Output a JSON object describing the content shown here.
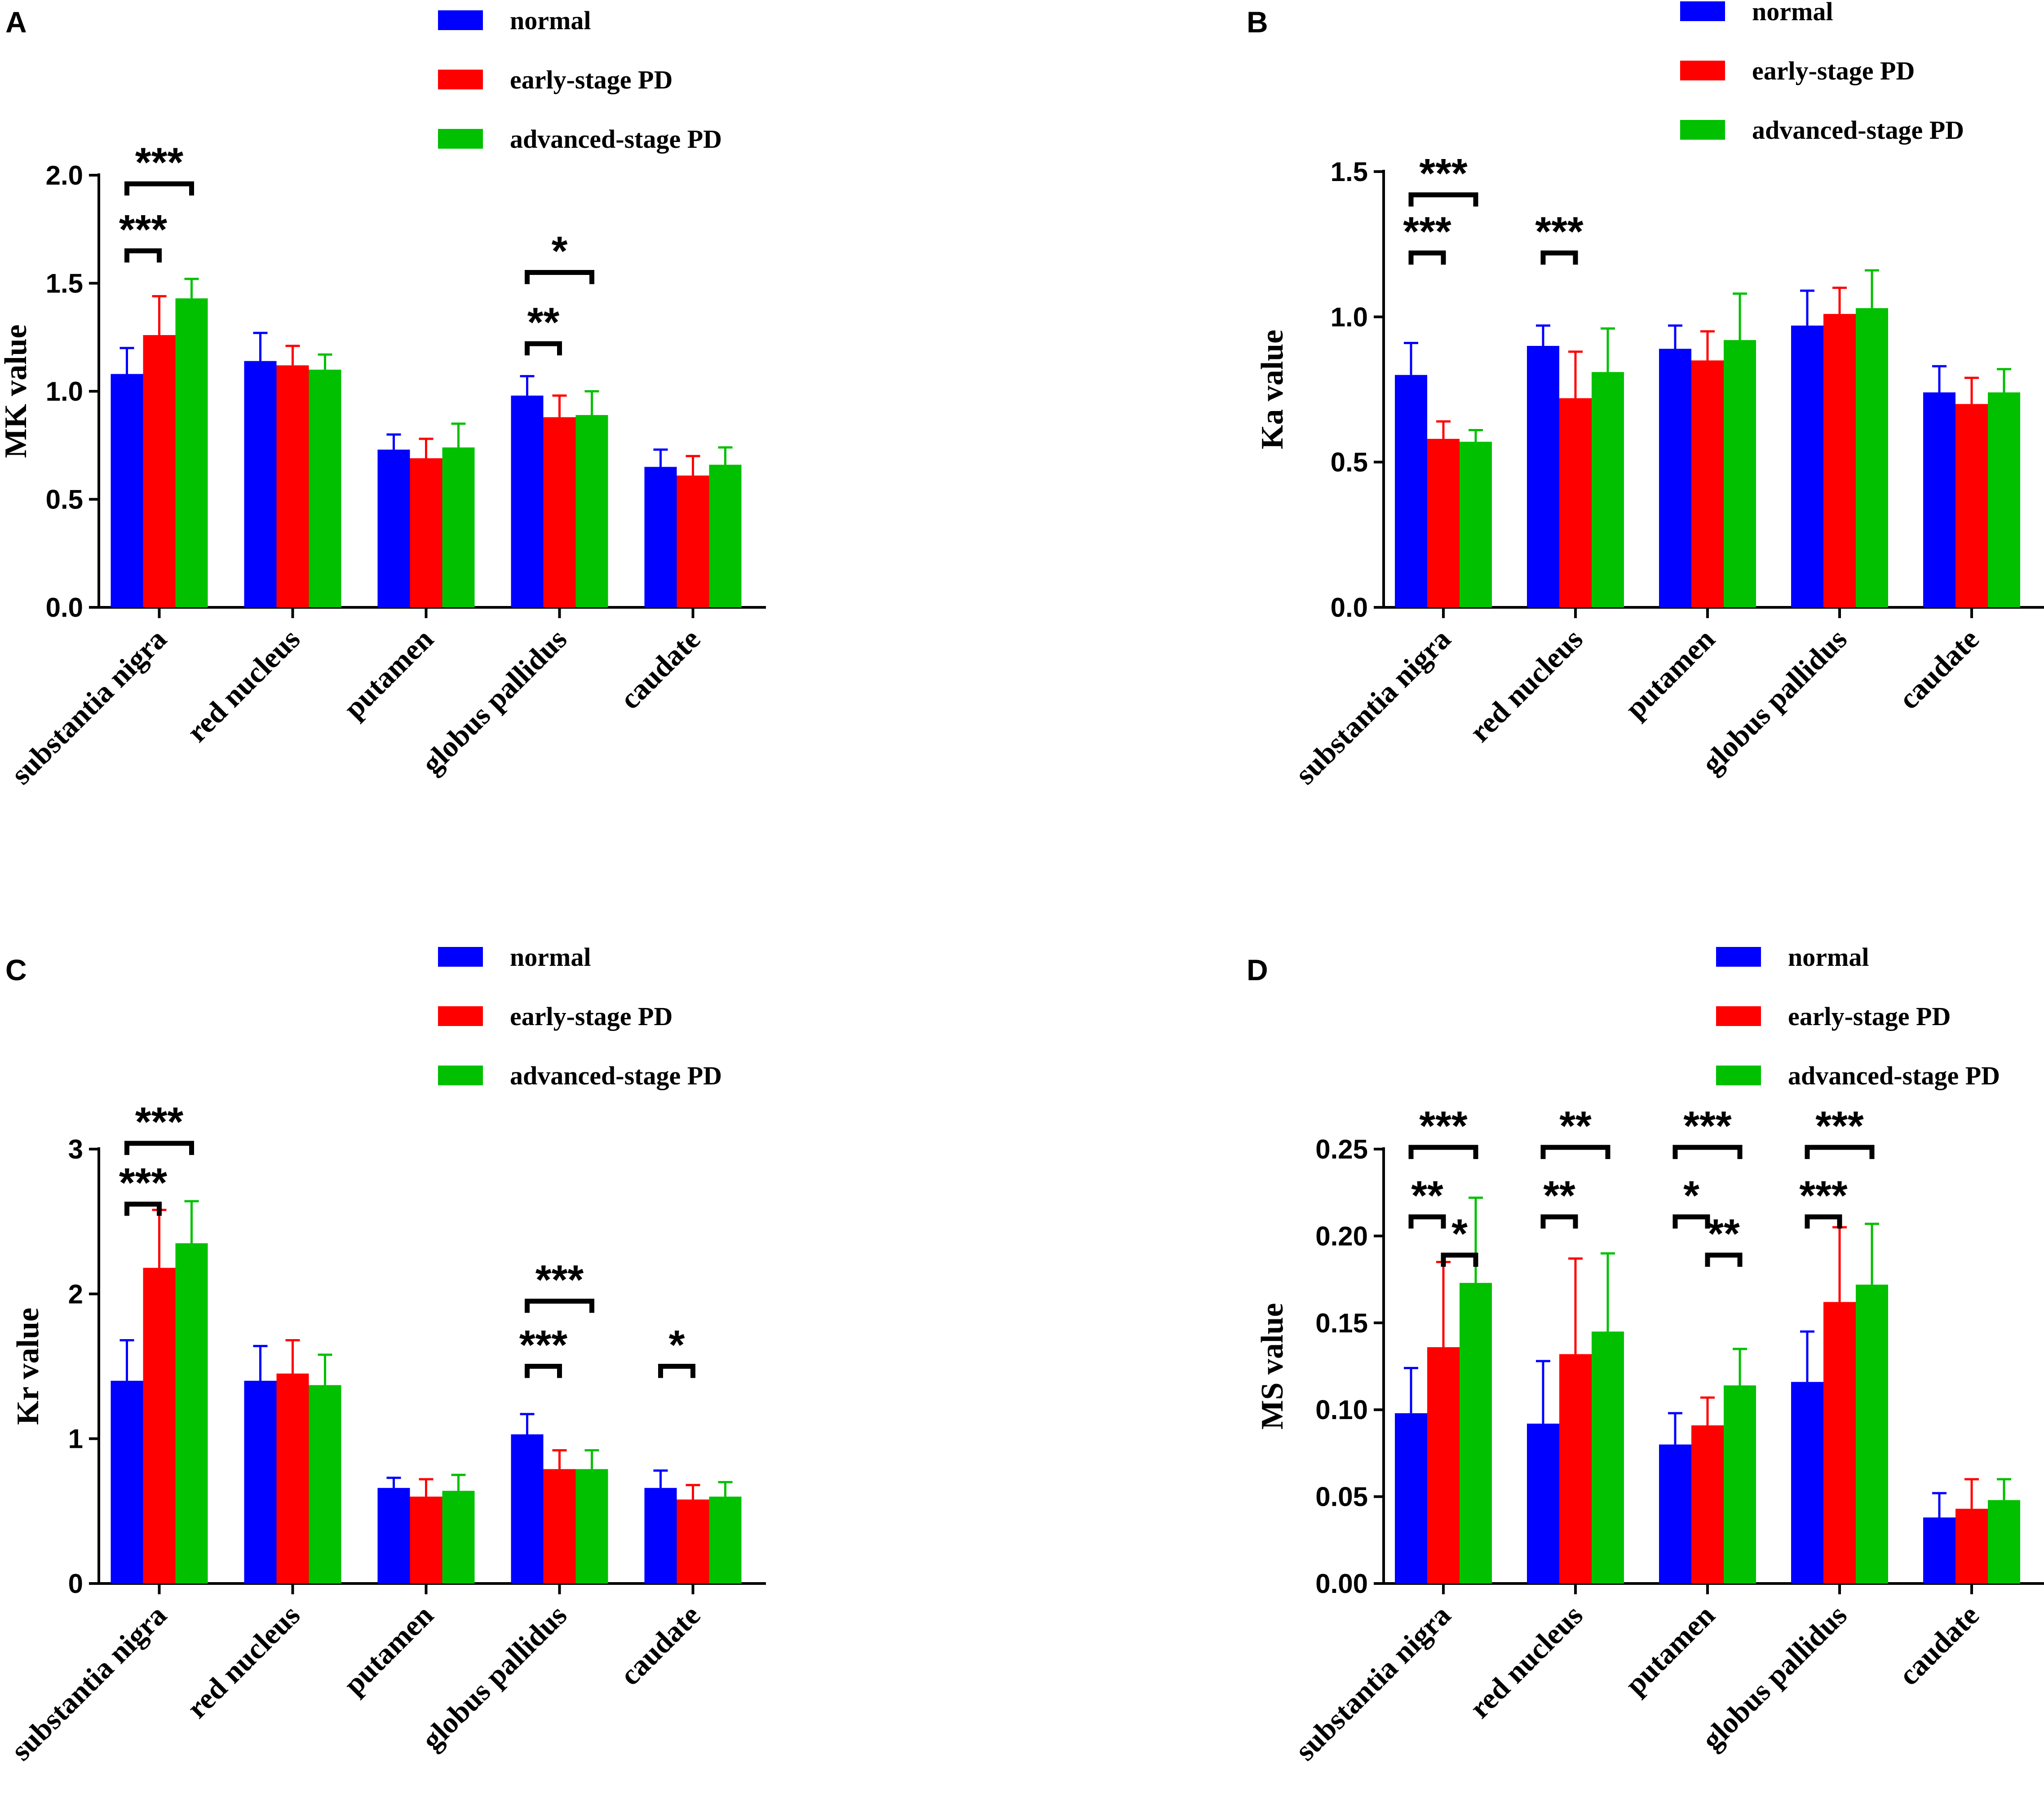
{
  "colors": {
    "normal": "#0000ff",
    "early": "#ff0000",
    "advanced": "#00c000",
    "axis": "#000000"
  },
  "chart_data": [
    {
      "panel": "A",
      "type": "bar",
      "ylabel": "MK value",
      "ylim": [
        0,
        2.0
      ],
      "yticks": [
        "0.0",
        "0.5",
        "1.0",
        "1.5",
        "2.0"
      ],
      "categories": [
        "substantia nigra",
        "red nucleus",
        "putamen",
        "globus pallidus",
        "caudate"
      ],
      "legend": [
        "normal",
        "early-stage PD",
        "advanced-stage PD"
      ],
      "series": [
        {
          "name": "normal",
          "values": [
            1.08,
            1.14,
            0.73,
            0.98,
            0.65
          ],
          "errors": [
            0.12,
            0.13,
            0.07,
            0.09,
            0.08
          ]
        },
        {
          "name": "early-stage PD",
          "values": [
            1.26,
            1.12,
            0.69,
            0.88,
            0.61
          ],
          "errors": [
            0.18,
            0.09,
            0.09,
            0.1,
            0.09
          ]
        },
        {
          "name": "advanced-stage PD",
          "values": [
            1.43,
            1.1,
            0.74,
            0.89,
            0.66
          ],
          "errors": [
            0.09,
            0.07,
            0.11,
            0.11,
            0.08
          ]
        }
      ],
      "significance": [
        {
          "category": 0,
          "from": 0,
          "to": 1,
          "label": "***",
          "level": 1.65
        },
        {
          "category": 0,
          "from": 0,
          "to": 2,
          "label": "***",
          "level": 1.96
        },
        {
          "category": 3,
          "from": 0,
          "to": 1,
          "label": "**",
          "level": 1.22
        },
        {
          "category": 3,
          "from": 0,
          "to": 2,
          "label": "*",
          "level": 1.55
        }
      ]
    },
    {
      "panel": "B",
      "type": "bar",
      "ylabel": "Ka value",
      "ylim": [
        0,
        1.5
      ],
      "yticks": [
        "0.0",
        "0.5",
        "1.0",
        "1.5"
      ],
      "categories": [
        "substantia nigra",
        "red nucleus",
        "putamen",
        "globus pallidus",
        "caudate"
      ],
      "legend": [
        "normal",
        "early-stage PD",
        "advanced-stage PD"
      ],
      "series": [
        {
          "name": "normal",
          "values": [
            0.8,
            0.9,
            0.89,
            0.97,
            0.74
          ],
          "errors": [
            0.11,
            0.07,
            0.08,
            0.12,
            0.09
          ]
        },
        {
          "name": "early-stage PD",
          "values": [
            0.58,
            0.72,
            0.85,
            1.01,
            0.7
          ],
          "errors": [
            0.06,
            0.16,
            0.1,
            0.09,
            0.09
          ]
        },
        {
          "name": "advanced-stage PD",
          "values": [
            0.57,
            0.81,
            0.92,
            1.03,
            0.74
          ],
          "errors": [
            0.04,
            0.15,
            0.16,
            0.13,
            0.08
          ]
        }
      ],
      "significance": [
        {
          "category": 0,
          "from": 0,
          "to": 1,
          "label": "***",
          "level": 1.22
        },
        {
          "category": 0,
          "from": 0,
          "to": 2,
          "label": "***",
          "level": 1.42
        },
        {
          "category": 1,
          "from": 0,
          "to": 1,
          "label": "***",
          "level": 1.22
        }
      ]
    },
    {
      "panel": "C",
      "type": "bar",
      "ylabel": "Kr value",
      "ylim": [
        0,
        3
      ],
      "yticks": [
        "0",
        "1",
        "2",
        "3"
      ],
      "categories": [
        "substantia nigra",
        "red nucleus",
        "putamen",
        "globus pallidus",
        "caudate"
      ],
      "legend": [
        "normal",
        "early-stage PD",
        "advanced-stage PD"
      ],
      "series": [
        {
          "name": "normal",
          "values": [
            1.4,
            1.4,
            0.66,
            1.03,
            0.66
          ],
          "errors": [
            0.28,
            0.24,
            0.07,
            0.14,
            0.12
          ]
        },
        {
          "name": "early-stage PD",
          "values": [
            2.18,
            1.45,
            0.6,
            0.79,
            0.58
          ],
          "errors": [
            0.4,
            0.23,
            0.12,
            0.13,
            0.1
          ]
        },
        {
          "name": "advanced-stage PD",
          "values": [
            2.35,
            1.37,
            0.64,
            0.79,
            0.6
          ],
          "errors": [
            0.29,
            0.21,
            0.11,
            0.13,
            0.1
          ]
        }
      ],
      "significance": [
        {
          "category": 0,
          "from": 0,
          "to": 1,
          "label": "***",
          "level": 2.62
        },
        {
          "category": 0,
          "from": 0,
          "to": 2,
          "label": "***",
          "level": 3.04
        },
        {
          "category": 3,
          "from": 0,
          "to": 1,
          "label": "***",
          "level": 1.5
        },
        {
          "category": 3,
          "from": 0,
          "to": 2,
          "label": "***",
          "level": 1.95
        },
        {
          "category": 4,
          "from": 0,
          "to": 1,
          "label": "*",
          "level": 1.5
        }
      ]
    },
    {
      "panel": "D",
      "type": "bar",
      "ylabel": "MS value",
      "ylim": [
        0,
        0.25
      ],
      "yticks": [
        "0.00",
        "0.05",
        "0.10",
        "0.15",
        "0.20",
        "0.25"
      ],
      "categories": [
        "substantia nigra",
        "red nucleus",
        "putamen",
        "globus pallidus",
        "caudate"
      ],
      "legend": [
        "normal",
        "early-stage PD",
        "advanced-stage PD"
      ],
      "series": [
        {
          "name": "normal",
          "values": [
            0.098,
            0.092,
            0.08,
            0.116,
            0.038
          ],
          "errors": [
            0.026,
            0.036,
            0.018,
            0.029,
            0.014
          ]
        },
        {
          "name": "early-stage PD",
          "values": [
            0.136,
            0.132,
            0.091,
            0.162,
            0.043
          ],
          "errors": [
            0.049,
            0.055,
            0.016,
            0.043,
            0.017
          ]
        },
        {
          "name": "advanced-stage PD",
          "values": [
            0.173,
            0.145,
            0.114,
            0.172,
            0.048
          ],
          "errors": [
            0.049,
            0.045,
            0.021,
            0.035,
            0.012
          ]
        }
      ],
      "significance": [
        {
          "category": 0,
          "from": 0,
          "to": 1,
          "label": "**",
          "level": 0.211
        },
        {
          "category": 0,
          "from": 1,
          "to": 2,
          "label": "*",
          "level": 0.189
        },
        {
          "category": 0,
          "from": 0,
          "to": 2,
          "label": "***",
          "level": 0.251
        },
        {
          "category": 1,
          "from": 0,
          "to": 1,
          "label": "**",
          "level": 0.211
        },
        {
          "category": 1,
          "from": 0,
          "to": 2,
          "label": "**",
          "level": 0.251
        },
        {
          "category": 2,
          "from": 0,
          "to": 1,
          "label": "*",
          "level": 0.211
        },
        {
          "category": 2,
          "from": 1,
          "to": 2,
          "label": "**",
          "level": 0.189
        },
        {
          "category": 2,
          "from": 0,
          "to": 2,
          "label": "***",
          "level": 0.251
        },
        {
          "category": 3,
          "from": 0,
          "to": 1,
          "label": "***",
          "level": 0.211
        },
        {
          "category": 3,
          "from": 0,
          "to": 2,
          "label": "***",
          "level": 0.251
        }
      ]
    }
  ]
}
